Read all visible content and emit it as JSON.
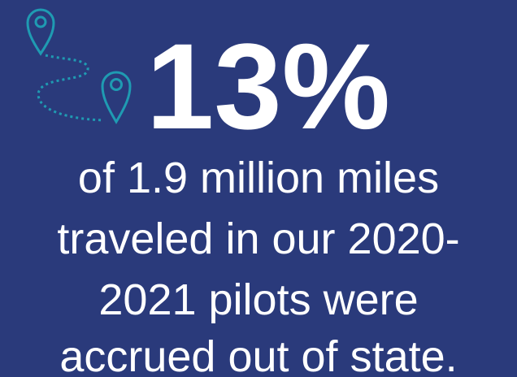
{
  "stat": "13%",
  "lines": [
    "of 1.9 million miles",
    "traveled in our 2020-",
    "2021 pilots were",
    "accrued out of state."
  ]
}
